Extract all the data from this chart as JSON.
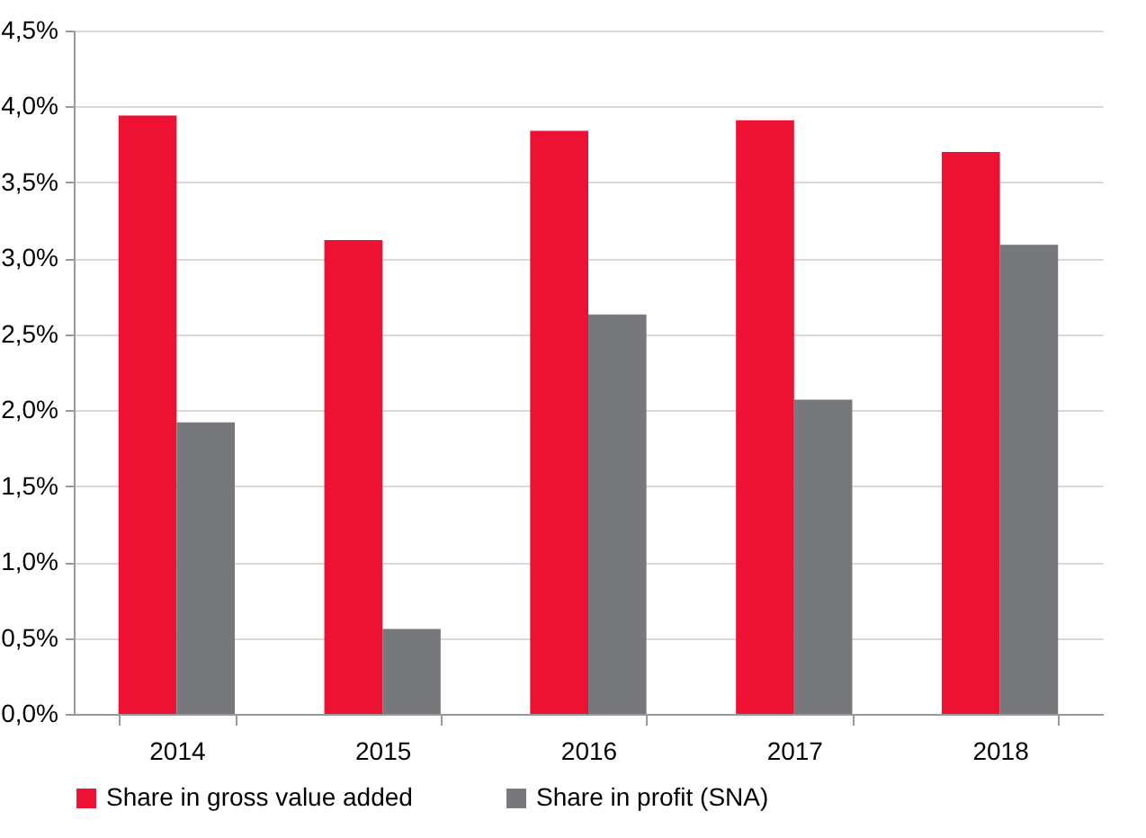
{
  "chart_data": {
    "type": "bar",
    "categories": [
      "2014",
      "2015",
      "2016",
      "2017",
      "2018"
    ],
    "series": [
      {
        "name": "Share in gross value added",
        "color": "#ed1133",
        "values": [
          3.94,
          3.12,
          3.84,
          3.91,
          3.7
        ]
      },
      {
        "name": "Share in profit (SNA)",
        "color": "#77787b",
        "values": [
          1.92,
          0.56,
          2.63,
          2.07,
          3.09
        ]
      }
    ],
    "ylim": [
      0,
      4.5
    ],
    "yticks": [
      {
        "value": 0,
        "label": "0,0%"
      },
      {
        "value": 0.5,
        "label": "0,5%"
      },
      {
        "value": 1,
        "label": "1,0%"
      },
      {
        "value": 1.5,
        "label": "1,5%"
      },
      {
        "value": 2,
        "label": "2,0%"
      },
      {
        "value": 2.5,
        "label": "2,5%"
      },
      {
        "value": 3,
        "label": "3,0%"
      },
      {
        "value": 3.5,
        "label": "3,5%"
      },
      {
        "value": 4,
        "label": "4,0%"
      },
      {
        "value": 4.5,
        "label": "4,5%"
      }
    ],
    "grid": "y",
    "legend": "bottom"
  }
}
